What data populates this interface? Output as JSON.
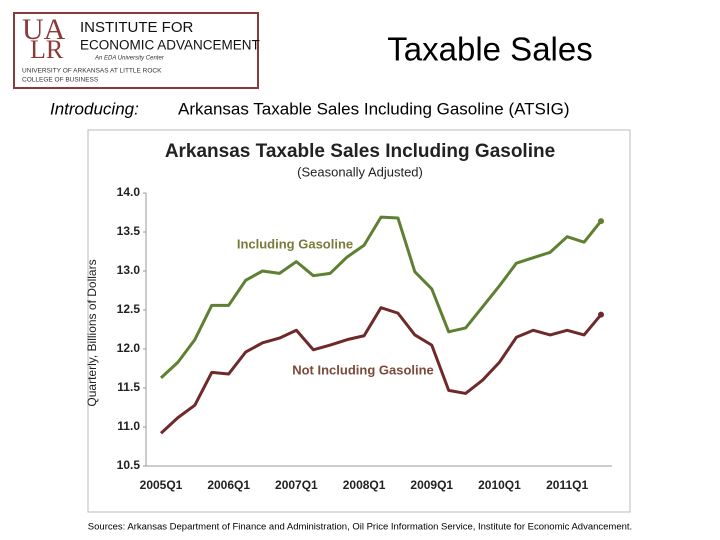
{
  "logo": {
    "mark_top": "UA",
    "mark_bottom": "LR",
    "line1": "INSTITUTE FOR",
    "line2": "ECONOMIC ADVANCEMENT",
    "tagline": "An EDA University Center",
    "university": "UNIVERSITY OF ARKANSAS AT LITTLE ROCK",
    "college": "COLLEGE OF BUSINESS"
  },
  "header": {
    "title": "Taxable Sales",
    "intro_label": "Introducing:",
    "intro_text": "Arkansas Taxable Sales Including Gasoline (ATSIG)"
  },
  "footer": {
    "sources": "Sources:  Arkansas Department of Finance and Administration, Oil Price Information Service, Institute for Economic Advancement."
  },
  "chart_data": {
    "type": "line",
    "title": "Arkansas Taxable Sales Including Gasoline",
    "subtitle": "(Seasonally Adjusted)",
    "y_label": "Quarterly, Billions of Dollars",
    "categories": [
      "2005Q1",
      null,
      null,
      null,
      "2006Q1",
      null,
      null,
      null,
      "2007Q1",
      null,
      null,
      null,
      "2008Q1",
      null,
      null,
      null,
      "2009Q1",
      null,
      null,
      null,
      "2010Q1",
      null,
      null,
      null,
      "2011Q1",
      null,
      null
    ],
    "series": [
      {
        "name": "Including Gasoline",
        "color": "#5f7f32",
        "values": [
          11.63,
          11.83,
          12.12,
          12.56,
          12.56,
          12.88,
          13.0,
          12.97,
          13.12,
          12.94,
          12.97,
          13.18,
          13.33,
          13.69,
          13.68,
          12.99,
          12.77,
          12.22,
          12.27,
          12.54,
          12.81,
          13.1,
          13.17,
          13.24,
          13.44,
          13.37,
          13.64
        ]
      },
      {
        "name": "Not Including Gasoline",
        "color": "#6e2a2a",
        "values": [
          10.92,
          11.12,
          11.28,
          11.7,
          11.68,
          11.96,
          12.08,
          12.14,
          12.24,
          11.99,
          12.05,
          12.12,
          12.17,
          12.53,
          12.46,
          12.18,
          12.05,
          11.47,
          11.43,
          11.6,
          11.83,
          12.15,
          12.24,
          12.18,
          12.24,
          12.18,
          12.44
        ]
      }
    ],
    "ylim": [
      10.5,
      14.0
    ],
    "yticks": [
      {
        "value": 10.5,
        "label": "10.5"
      },
      {
        "value": 11,
        "label": "11.0"
      },
      {
        "value": 11.5,
        "label": "11.5"
      },
      {
        "value": 12,
        "label": "12.0"
      },
      {
        "value": 12.5,
        "label": "12.5"
      },
      {
        "value": 13,
        "label": "13.0"
      },
      {
        "value": 13.5,
        "label": "13.5"
      },
      {
        "value": 14,
        "label": "14.0"
      }
    ]
  }
}
